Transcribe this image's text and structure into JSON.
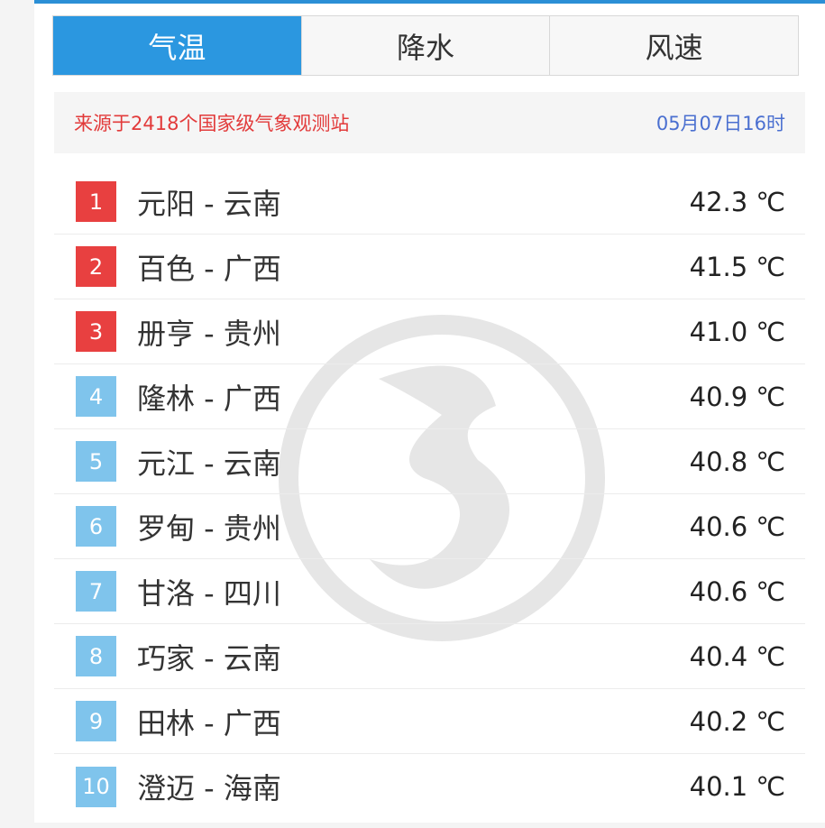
{
  "tabs": [
    {
      "label": "气温",
      "active": true
    },
    {
      "label": "降水",
      "active": false
    },
    {
      "label": "风速",
      "active": false
    }
  ],
  "info": {
    "source": "来源于2418个国家级气象观测站",
    "time": "05月07日16时"
  },
  "colors": {
    "accent": "#2b97e0",
    "top3_badge": "#e84040",
    "other_badge": "#7fc4ec"
  },
  "watermark": "gray-dragon-logo",
  "rows": [
    {
      "rank": "1",
      "name": "元阳 - 云南",
      "value": "42.3 ℃"
    },
    {
      "rank": "2",
      "name": "百色 - 广西",
      "value": "41.5 ℃"
    },
    {
      "rank": "3",
      "name": "册亨 - 贵州",
      "value": "41.0 ℃"
    },
    {
      "rank": "4",
      "name": "隆林 - 广西",
      "value": "40.9 ℃"
    },
    {
      "rank": "5",
      "name": "元江 - 云南",
      "value": "40.8 ℃"
    },
    {
      "rank": "6",
      "name": "罗甸 - 贵州",
      "value": "40.6 ℃"
    },
    {
      "rank": "7",
      "name": "甘洛 - 四川",
      "value": "40.6 ℃"
    },
    {
      "rank": "8",
      "name": "巧家 - 云南",
      "value": "40.4 ℃"
    },
    {
      "rank": "9",
      "name": "田林 - 广西",
      "value": "40.2 ℃"
    },
    {
      "rank": "10",
      "name": "澄迈 - 海南",
      "value": "40.1 ℃"
    }
  ]
}
